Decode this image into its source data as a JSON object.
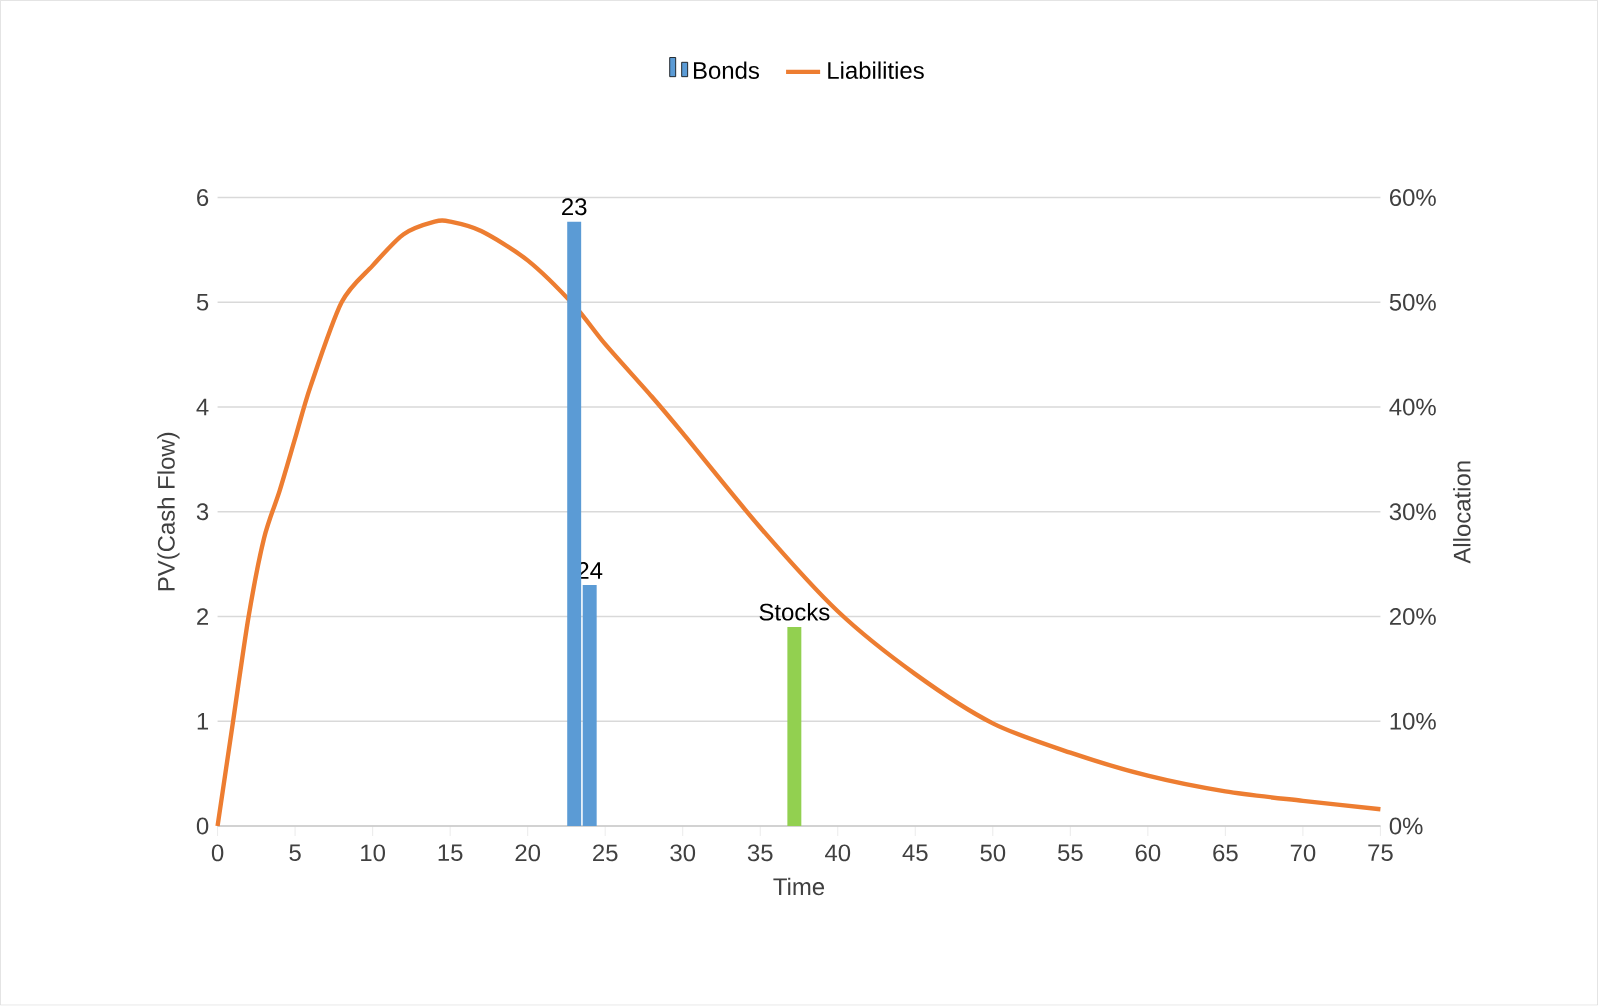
{
  "chart_data": {
    "type": "bar",
    "xlabel": "Time",
    "ylabel": "PV(Cash Flow)",
    "y2label": "Allocation",
    "xlim": [
      0,
      75
    ],
    "xticks": [
      0,
      5,
      10,
      15,
      20,
      25,
      30,
      35,
      40,
      45,
      50,
      55,
      60,
      65,
      70,
      75
    ],
    "ylim": [
      0,
      6
    ],
    "yticks": [
      0,
      1,
      2,
      3,
      4,
      5,
      6
    ],
    "y2lim": [
      0,
      60
    ],
    "y2ticks": [
      {
        "value": 0,
        "label": "0%"
      },
      {
        "value": 10,
        "label": "10%"
      },
      {
        "value": 20,
        "label": "20%"
      },
      {
        "value": 30,
        "label": "30%"
      },
      {
        "value": 40,
        "label": "40%"
      },
      {
        "value": 50,
        "label": "50%"
      },
      {
        "value": 60,
        "label": "60%"
      }
    ],
    "grid": "y",
    "legend": "top",
    "annotations": [
      {
        "text": "23",
        "x": 23,
        "y": 5.77
      },
      {
        "text": "24",
        "x": 24,
        "y": 2.3
      }
    ],
    "series": [
      {
        "name": "Bonds",
        "axis": "y2",
        "color": "#5b9bd5",
        "x": [
          23,
          24
        ],
        "values": [
          57.7,
          23
        ]
      },
      {
        "name": "Stocks",
        "axis": "y2",
        "color": "#92d050",
        "x": [
          37.2
        ],
        "values": [
          19
        ]
      },
      {
        "name": "Liabilities",
        "type": "line",
        "color": "#ed7d31",
        "x": [
          0,
          1,
          2,
          3,
          4,
          5,
          6,
          8,
          10,
          12,
          14,
          15,
          17,
          20,
          23,
          25,
          28,
          30,
          35,
          40,
          45,
          50,
          55,
          60,
          65,
          70,
          75
        ],
        "values": [
          0,
          1.0,
          2.0,
          2.75,
          3.2,
          3.7,
          4.2,
          5.0,
          5.35,
          5.65,
          5.77,
          5.77,
          5.68,
          5.4,
          4.97,
          4.6,
          4.1,
          3.75,
          2.85,
          2.05,
          1.45,
          0.98,
          0.7,
          0.48,
          0.33,
          0.24,
          0.16
        ]
      }
    ]
  }
}
